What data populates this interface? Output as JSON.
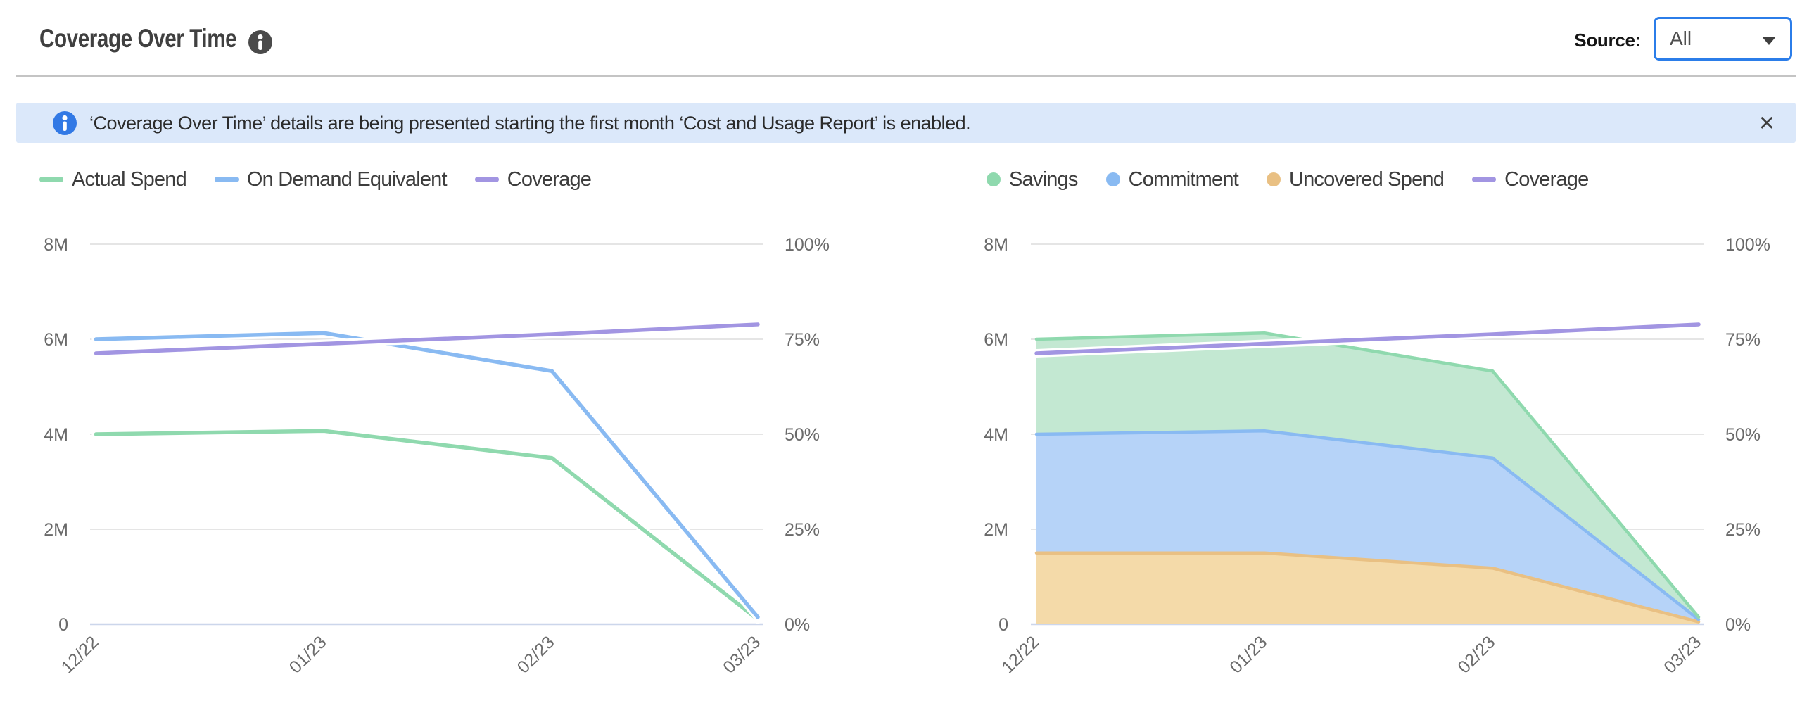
{
  "header": {
    "title": "Coverage Over Time",
    "source_label": "Source:",
    "source_value": "All"
  },
  "banner": {
    "text": "‘Coverage Over Time’ details are being presented starting the first month ‘Cost and Usage Report’ is enabled.",
    "close_label": "×"
  },
  "colors": {
    "green": "#8fd9ae",
    "blue": "#89baf2",
    "purple": "#a295e2",
    "orange": "#e9c083",
    "green_fill": "#c3e8d2",
    "blue_fill": "#b6d3f8",
    "orange_fill": "#f4daa9",
    "banner_bg": "#dbe8fa",
    "dropdown_border": "#2b7de9"
  },
  "chart_data": [
    {
      "type": "line",
      "x": [
        "12/22",
        "01/23",
        "02/23",
        "03/23"
      ],
      "x_axis_note": "time axis, months spaced by real day counts",
      "y_left": {
        "ticks": [
          "0",
          "2M",
          "4M",
          "6M",
          "8M"
        ],
        "range": [
          0,
          8000000
        ]
      },
      "y_right": {
        "ticks": [
          "0%",
          "25%",
          "50%",
          "75%",
          "100%"
        ],
        "range": [
          0,
          100
        ]
      },
      "grid": true,
      "legend": [
        "Actual Spend",
        "On Demand Equivalent",
        "Coverage"
      ],
      "legend_position": "top",
      "series": [
        {
          "name": "Actual Spend",
          "type": "line",
          "axis": "left",
          "color": "#8fd9ae",
          "values": [
            4000000,
            4070000,
            3500000,
            100000
          ]
        },
        {
          "name": "On Demand Equivalent",
          "type": "line",
          "axis": "left",
          "color": "#89baf2",
          "values": [
            6000000,
            6130000,
            5330000,
            150000
          ]
        },
        {
          "name": "Coverage",
          "type": "line",
          "axis": "right",
          "color": "#a295e2",
          "values": [
            71.3,
            73.8,
            76.3,
            78.9
          ]
        }
      ]
    },
    {
      "type": "area",
      "stacked": true,
      "x": [
        "12/22",
        "01/23",
        "02/23",
        "03/23"
      ],
      "x_axis_note": "time axis, months spaced by real day counts",
      "y_left": {
        "ticks": [
          "0",
          "2M",
          "4M",
          "6M",
          "8M"
        ],
        "range": [
          0,
          8000000
        ]
      },
      "y_right": {
        "ticks": [
          "0%",
          "25%",
          "50%",
          "75%",
          "100%"
        ],
        "range": [
          0,
          100
        ]
      },
      "grid": true,
      "legend": [
        "Savings",
        "Commitment",
        "Uncovered Spend",
        "Coverage"
      ],
      "legend_position": "top",
      "series": [
        {
          "name": "Uncovered Spend",
          "type": "area",
          "axis": "left",
          "color": "#e9c083",
          "fill": "#f4daa9",
          "values": [
            1500000,
            1500000,
            1180000,
            50000
          ]
        },
        {
          "name": "Commitment",
          "type": "area",
          "axis": "left",
          "color": "#89baf2",
          "fill": "#b6d3f8",
          "values": [
            2500000,
            2570000,
            2320000,
            50000
          ]
        },
        {
          "name": "Savings",
          "type": "area",
          "axis": "left",
          "color": "#8fd9ae",
          "fill": "#c3e8d2",
          "values": [
            2000000,
            2060000,
            1830000,
            50000
          ]
        },
        {
          "name": "Coverage",
          "type": "line",
          "axis": "right",
          "color": "#a295e2",
          "values": [
            71.3,
            73.8,
            76.3,
            78.9
          ]
        }
      ]
    }
  ]
}
